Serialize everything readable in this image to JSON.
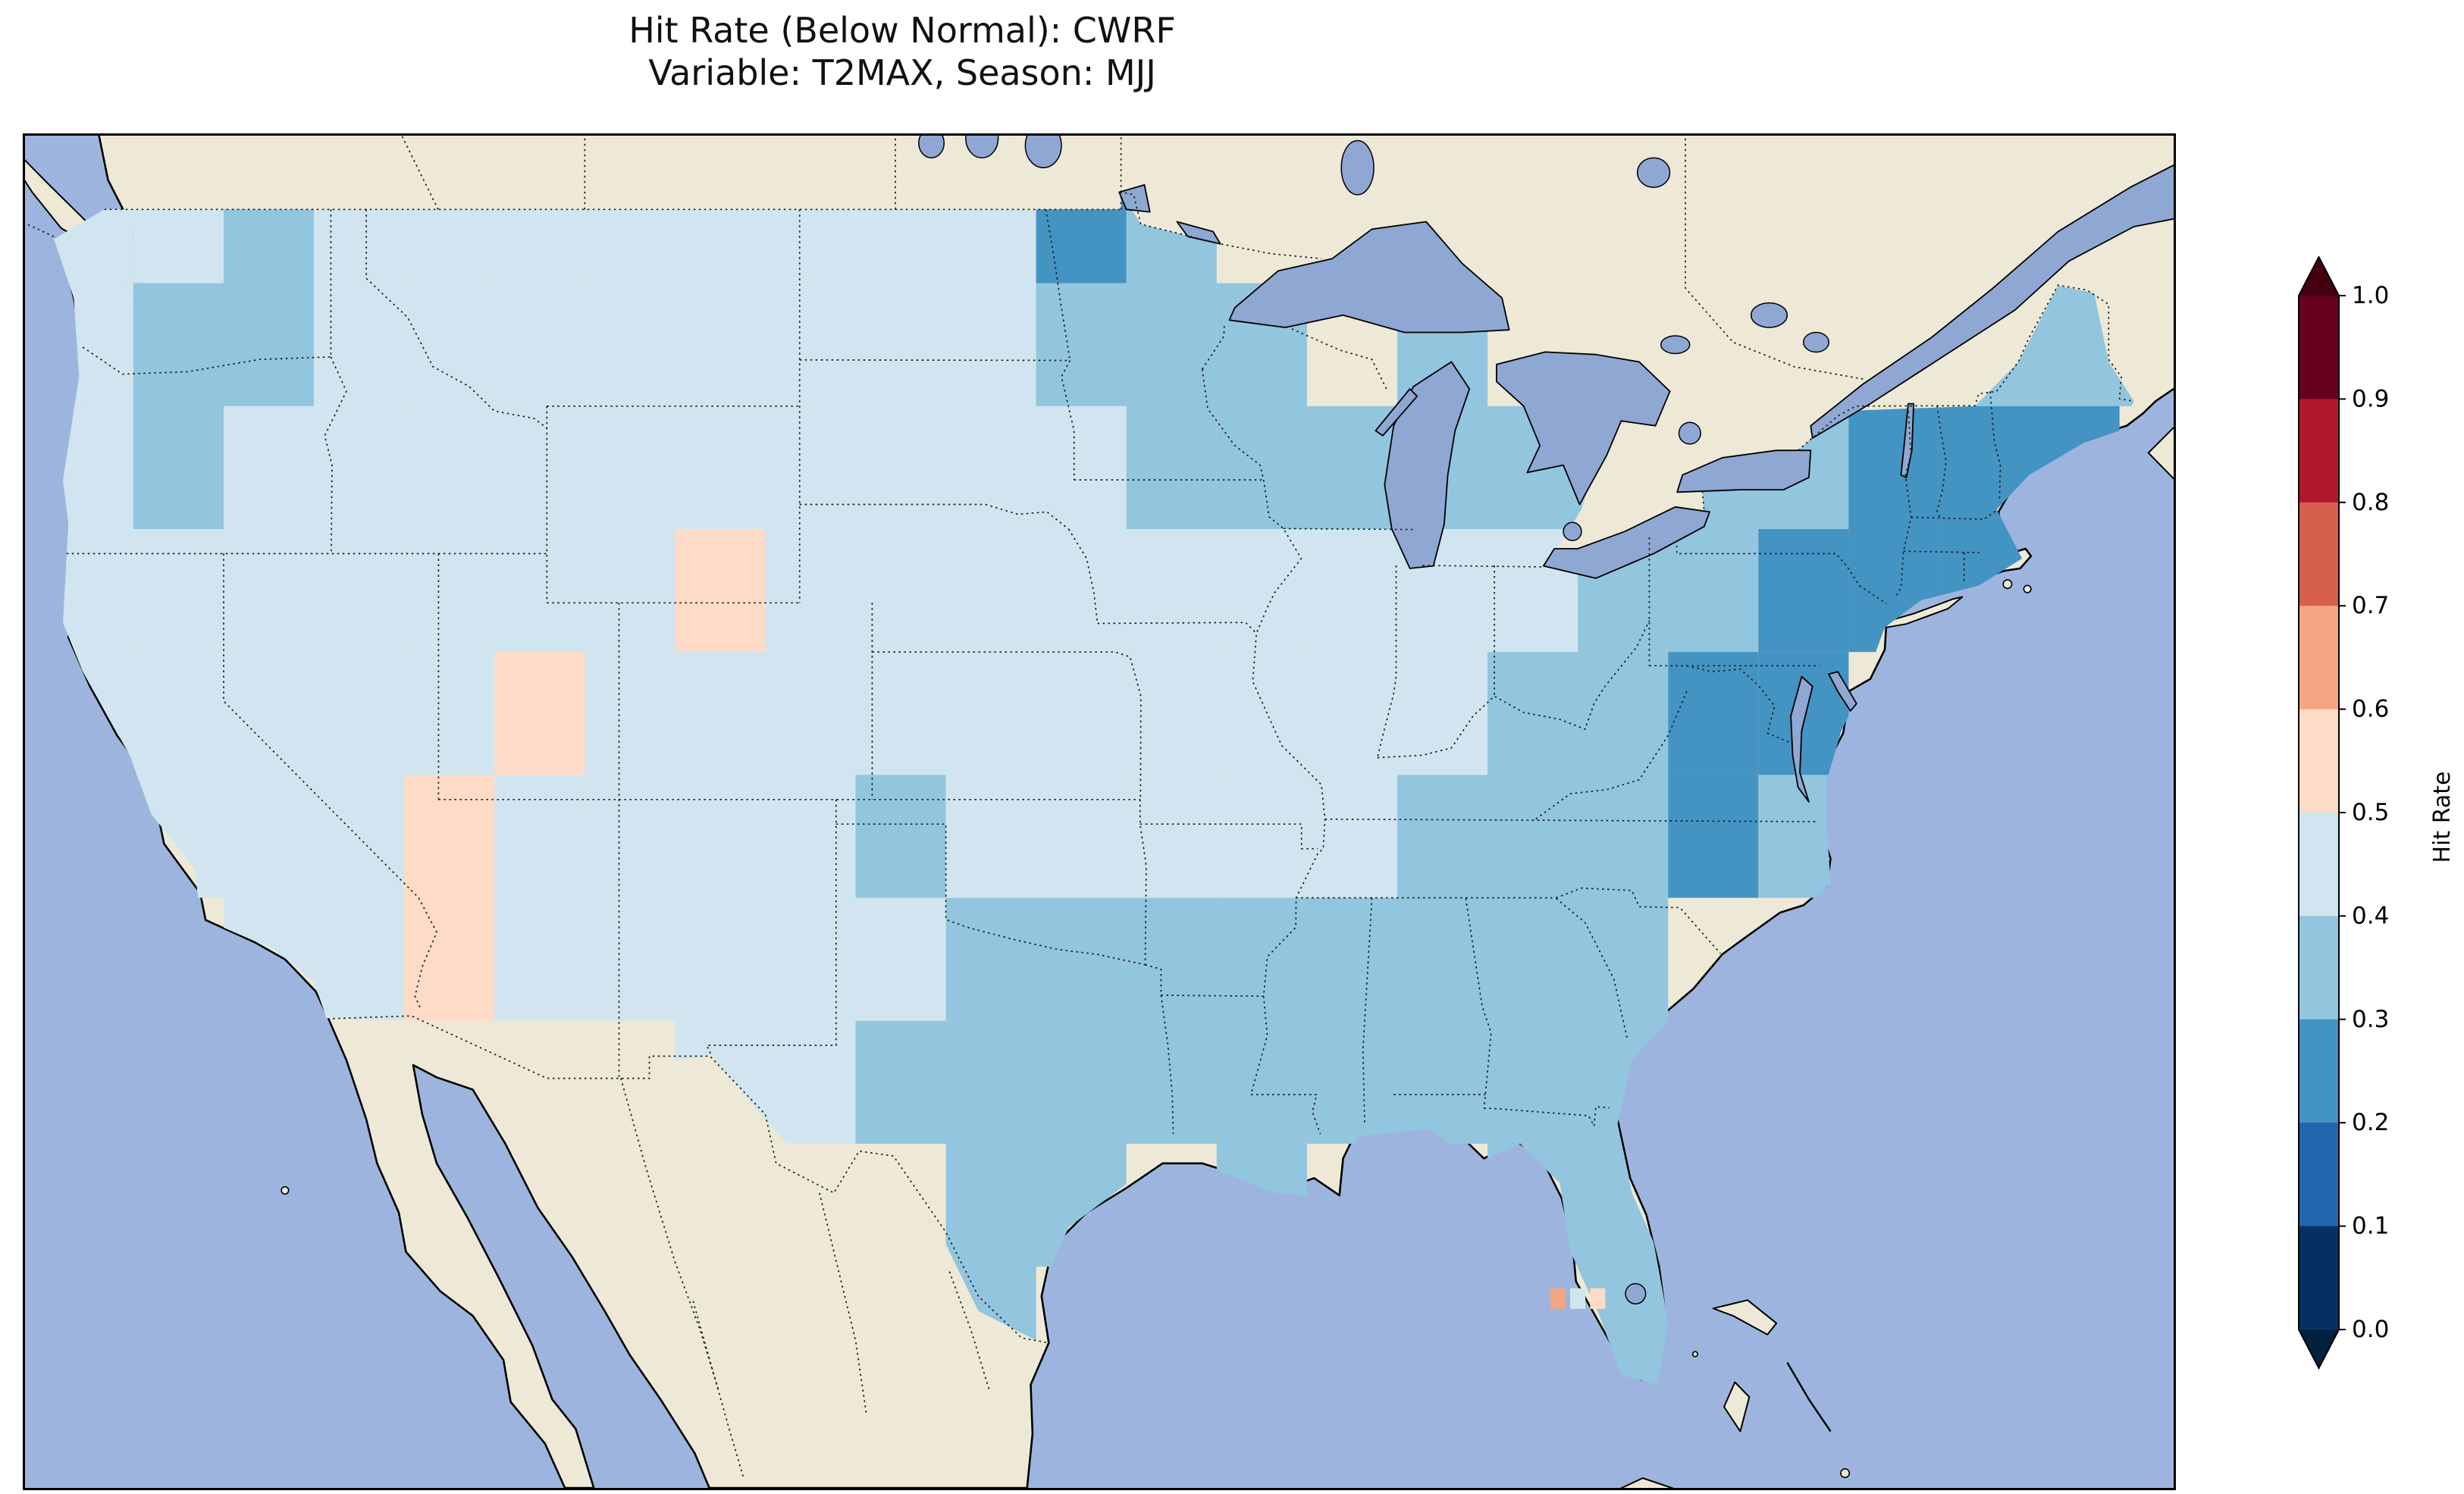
{
  "title": {
    "line1": "Hit Rate (Below Normal): CWRF",
    "line2": "Variable: T2MAX, Season: MJJ"
  },
  "colorbar": {
    "label": "Hit Rate",
    "ticks": [
      0.0,
      0.1,
      0.2,
      0.3,
      0.4,
      0.5,
      0.6,
      0.7,
      0.8,
      0.9,
      1.0
    ]
  },
  "chart_data": {
    "type": "heatmap",
    "title": "Hit Rate (Below Normal): CWRF",
    "subtitle": "Variable: T2MAX, Season: MJJ",
    "model": "CWRF",
    "metric": "Hit Rate",
    "category": "Below Normal",
    "variable": "T2MAX",
    "season": "MJJ",
    "colorbar_label": "Hit Rate",
    "colorbar_ticks": [
      0.0,
      0.1,
      0.2,
      0.3,
      0.4,
      0.5,
      0.6,
      0.7,
      0.8,
      0.9,
      1.0
    ],
    "colormap": {
      "name": "discrete RdBu_r, 10 bins, extend both",
      "bin_edges": [
        0.0,
        0.1,
        0.2,
        0.3,
        0.4,
        0.5,
        0.6,
        0.7,
        0.8,
        0.9,
        1.0
      ],
      "bin_colors": [
        "#053061",
        "#2166ac",
        "#4393c3",
        "#92c5de",
        "#d1e5f0",
        "#fddbc7",
        "#f4a582",
        "#d6604d",
        "#b2182b",
        "#67001f"
      ],
      "under_color": "#03203f",
      "over_color": "#45000f"
    },
    "map": {
      "region": "CONUS",
      "extent_lon": [
        -125.5,
        -66.0
      ],
      "extent_lat": [
        23.0,
        50.5
      ],
      "ocean_color": "#9db5de",
      "lake_color": "#8fa7d3",
      "land_color": "#ede9d6",
      "coast_color": "#000000",
      "state_border_style": "dotted"
    },
    "grid": {
      "lon_start": -125.0,
      "lon_step": 2.5,
      "lat_start": 50.0,
      "lat_step": -2.5,
      "ncols": 24,
      "nrows": 11,
      "note": "hit-rate field aggregated to ~2.5 degree blocks as read from the figure; null = outside data domain",
      "values": [
        [
          0.45,
          0.45,
          0.35,
          0.45,
          0.45,
          0.45,
          0.45,
          0.45,
          0.45,
          0.45,
          0.45,
          0.25,
          0.35,
          null,
          null,
          null,
          null,
          null,
          null,
          null,
          null,
          null,
          null,
          null
        ],
        [
          0.45,
          0.35,
          0.35,
          0.45,
          0.45,
          0.45,
          0.45,
          0.45,
          0.45,
          0.45,
          0.45,
          0.35,
          0.35,
          0.35,
          null,
          0.35,
          null,
          null,
          null,
          null,
          null,
          0.35,
          0.3,
          0.3
        ],
        [
          0.45,
          0.35,
          0.45,
          0.45,
          0.45,
          0.45,
          0.45,
          0.45,
          0.45,
          0.45,
          0.45,
          0.45,
          0.35,
          0.35,
          0.35,
          0.35,
          0.35,
          0.35,
          0.3,
          0.3,
          0.25,
          0.25,
          0.25,
          null
        ],
        [
          0.45,
          0.45,
          0.45,
          0.45,
          0.45,
          0.45,
          0.45,
          0.55,
          0.45,
          0.45,
          0.45,
          0.45,
          0.45,
          0.45,
          0.45,
          0.45,
          0.45,
          0.35,
          0.3,
          0.25,
          0.25,
          0.25,
          null,
          null
        ],
        [
          0.45,
          0.45,
          0.45,
          0.45,
          0.45,
          0.55,
          0.45,
          0.45,
          0.45,
          0.45,
          0.45,
          0.45,
          0.45,
          0.45,
          0.45,
          0.45,
          0.35,
          0.3,
          0.25,
          0.25,
          null,
          null,
          null,
          null
        ],
        [
          0.45,
          0.45,
          0.45,
          0.45,
          0.55,
          0.45,
          0.45,
          0.45,
          0.45,
          0.35,
          0.45,
          0.45,
          0.45,
          0.45,
          0.45,
          0.35,
          0.35,
          0.3,
          0.25,
          0.3,
          null,
          null,
          null,
          null
        ],
        [
          null,
          null,
          0.45,
          0.45,
          0.55,
          0.45,
          0.45,
          0.45,
          0.45,
          0.45,
          0.35,
          0.35,
          0.35,
          0.35,
          0.35,
          0.3,
          0.35,
          0.35,
          null,
          null,
          null,
          null,
          null,
          null
        ],
        [
          null,
          null,
          null,
          null,
          null,
          null,
          null,
          0.45,
          0.45,
          0.35,
          0.35,
          0.35,
          0.35,
          0.35,
          0.35,
          0.35,
          0.3,
          0.35,
          null,
          null,
          null,
          null,
          null,
          null
        ],
        [
          null,
          null,
          null,
          null,
          null,
          null,
          null,
          null,
          null,
          null,
          0.35,
          0.35,
          null,
          0.35,
          null,
          null,
          0.35,
          0.3,
          null,
          null,
          null,
          null,
          null,
          null
        ],
        [
          null,
          null,
          null,
          null,
          null,
          null,
          null,
          null,
          null,
          null,
          0.35,
          null,
          null,
          null,
          null,
          null,
          null,
          0.35,
          null,
          null,
          null,
          null,
          null,
          null
        ],
        [
          null,
          null,
          null,
          null,
          null,
          null,
          null,
          null,
          null,
          null,
          null,
          null,
          null,
          null,
          null,
          null,
          null,
          null,
          null,
          null,
          null,
          null,
          null,
          null
        ]
      ]
    },
    "special_cells": [
      {
        "lon": -83.05,
        "lat": 26.85,
        "value": 0.65
      },
      {
        "lon": -82.5,
        "lat": 26.85,
        "value": 0.45
      },
      {
        "lon": -81.95,
        "lat": 26.85,
        "value": 0.55
      }
    ]
  }
}
